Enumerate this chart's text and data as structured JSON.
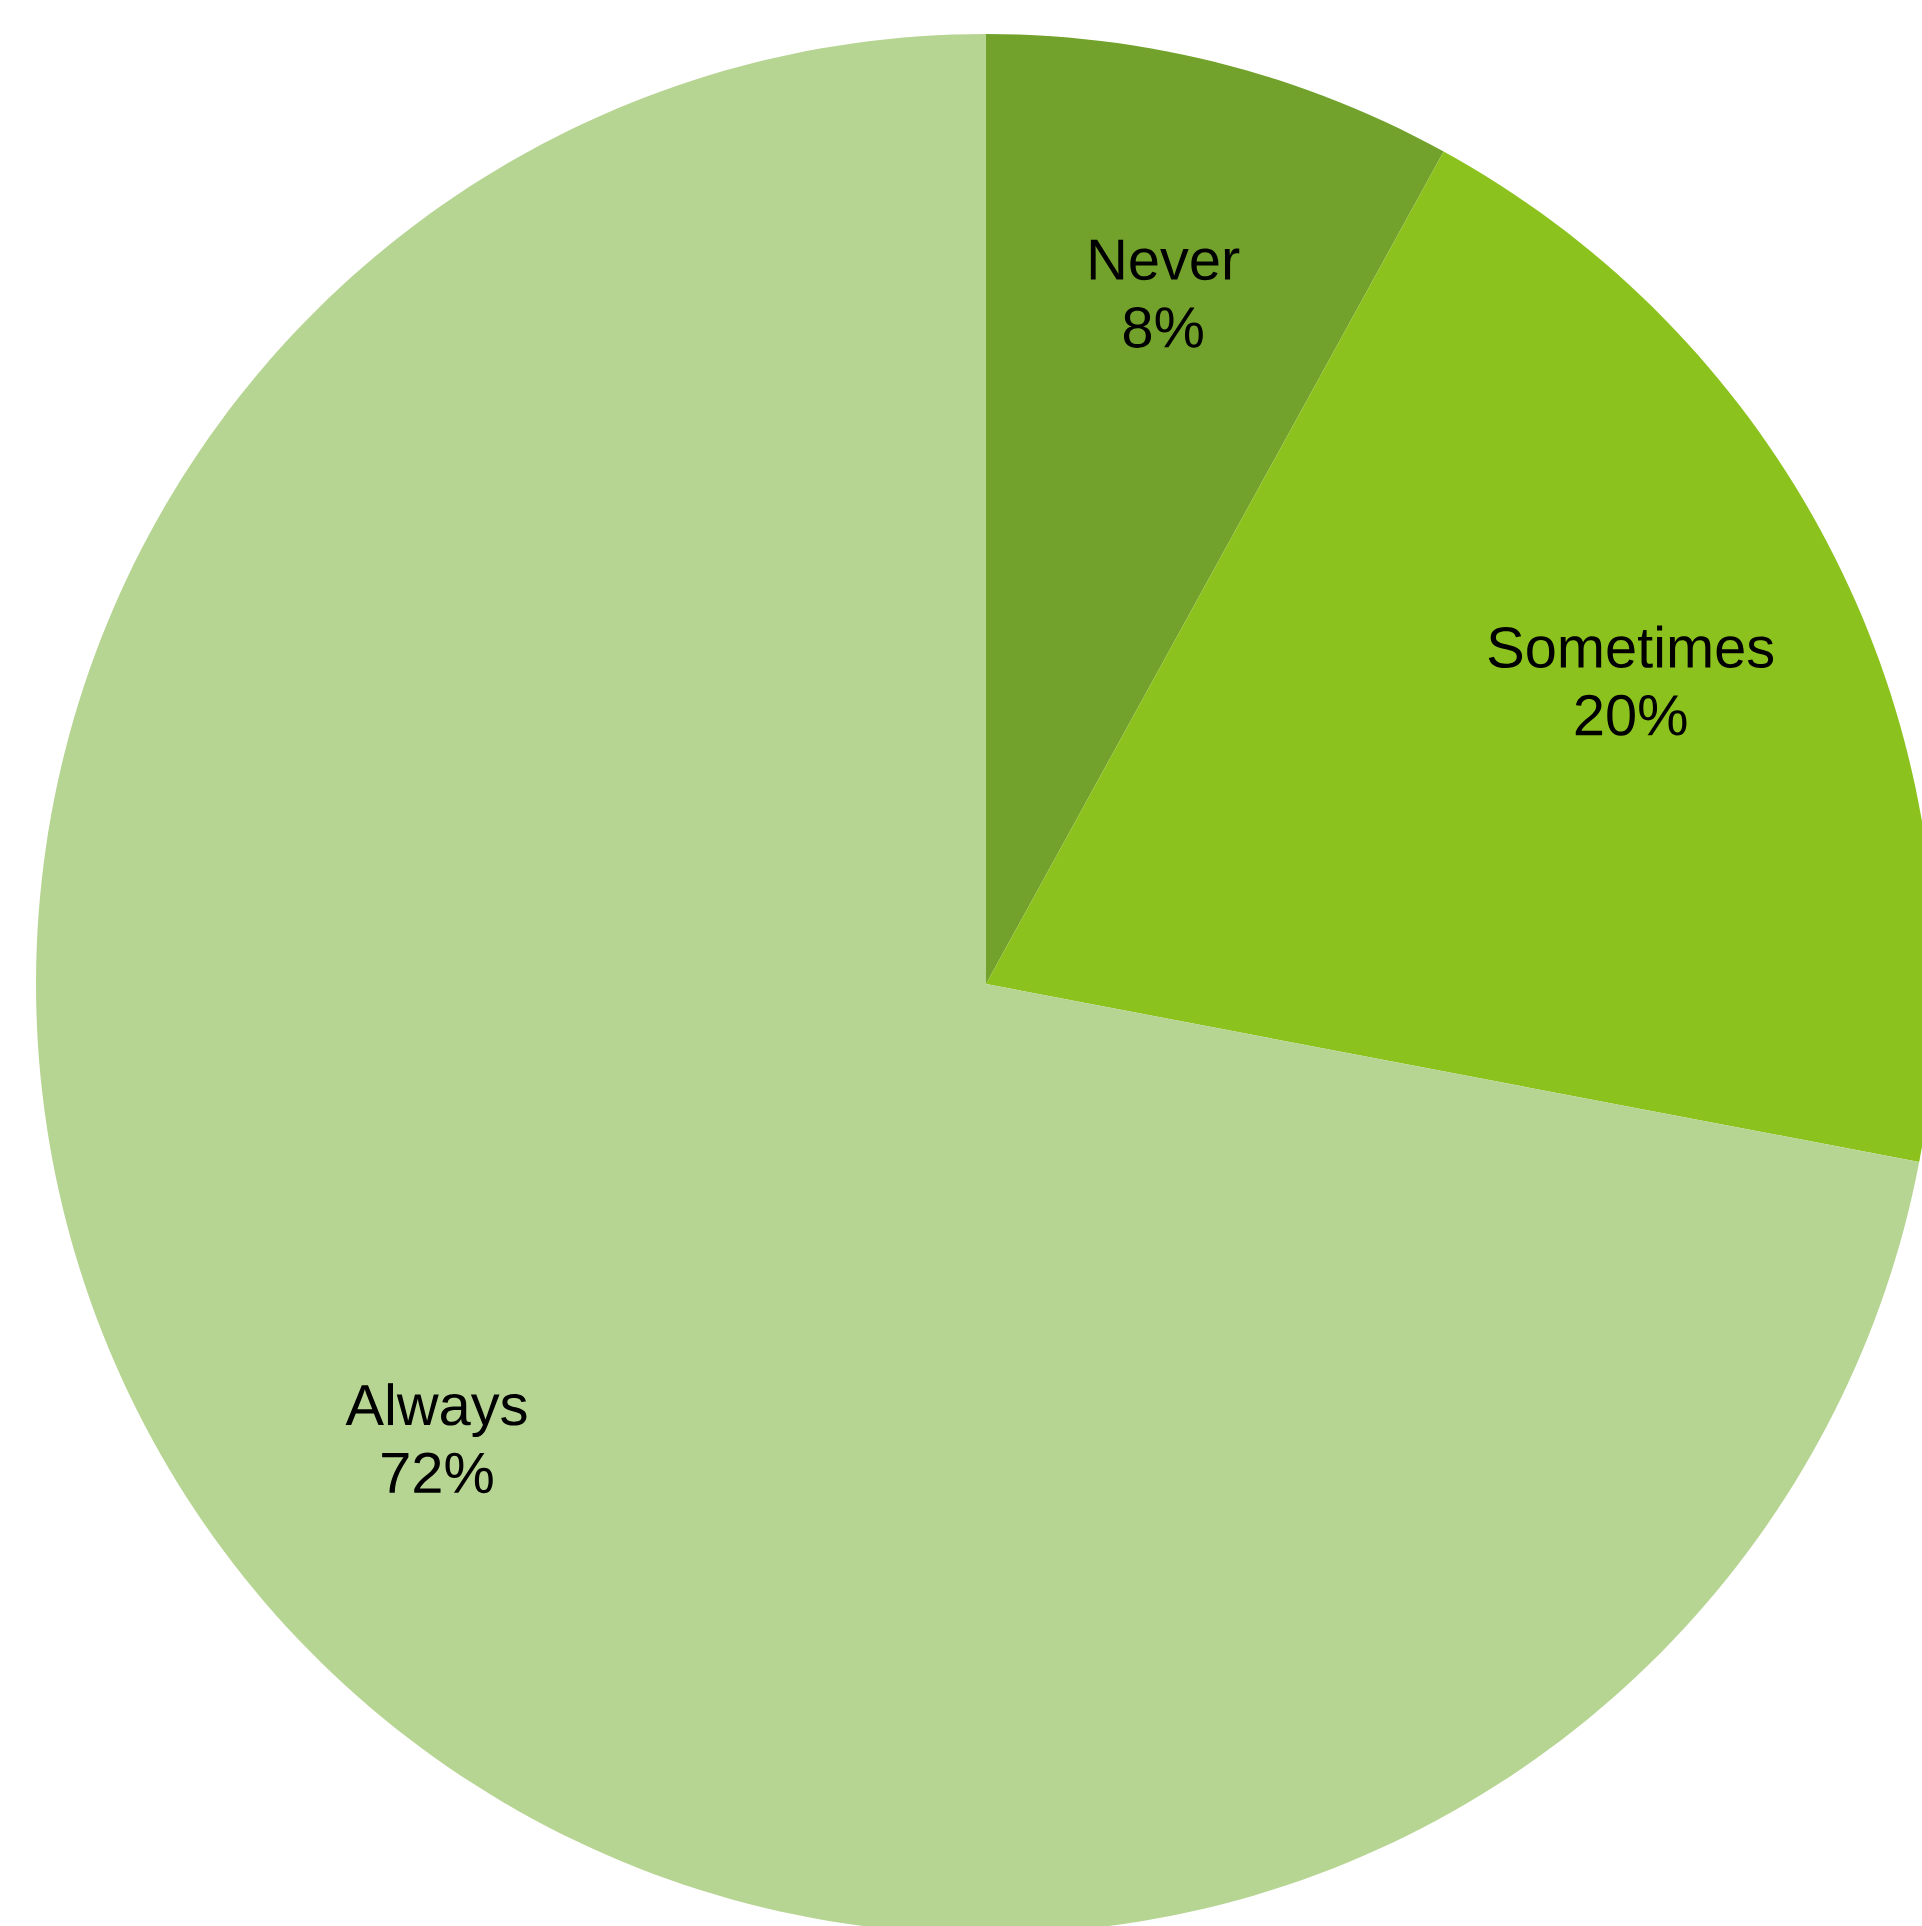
{
  "chart_data": {
    "type": "pie",
    "categories": [
      "Never",
      "Sometimes",
      "Always"
    ],
    "values": [
      8,
      20,
      72
    ],
    "value_labels": [
      "8%",
      "20%",
      "72%"
    ],
    "colors": [
      "#72a22c",
      "#8cc21e",
      "#b6d492"
    ]
  }
}
